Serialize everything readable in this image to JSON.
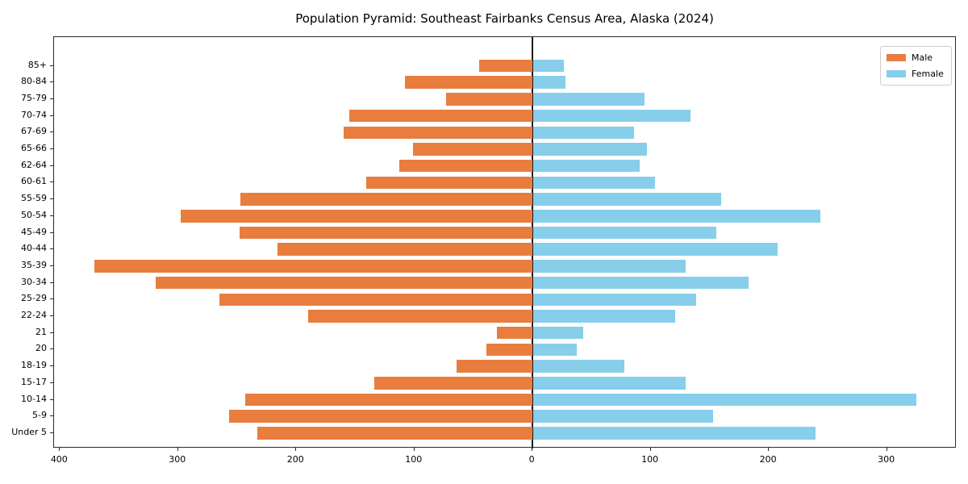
{
  "title": "Population Pyramid: Southeast Fairbanks Census Area, Alaska (2024)",
  "legend": {
    "male_label": "Male",
    "female_label": "Female"
  },
  "colors": {
    "male": "#e87d3e",
    "female": "#87ceeb",
    "zero_line": "#1a1a1a",
    "frame": "#2b2b2b"
  },
  "chart_data": {
    "type": "bar",
    "subtype": "population-pyramid-horizontal",
    "title": "Population Pyramid: Southeast Fairbanks Census Area, Alaska (2024)",
    "categories_top_to_bottom": [
      "85+",
      "80-84",
      "75-79",
      "70-74",
      "67-69",
      "65-66",
      "62-64",
      "60-61",
      "55-59",
      "50-54",
      "45-49",
      "40-44",
      "35-39",
      "30-34",
      "25-29",
      "22-24",
      "21",
      "20",
      "18-19",
      "15-17",
      "10-14",
      "5-9",
      "Under 5"
    ],
    "series": [
      {
        "name": "Male",
        "side": "left",
        "color": "#e87d3e",
        "values": [
          45,
          108,
          73,
          155,
          160,
          101,
          113,
          141,
          247,
          298,
          248,
          216,
          371,
          319,
          265,
          190,
          30,
          39,
          64,
          134,
          243,
          257,
          233
        ]
      },
      {
        "name": "Female",
        "side": "right",
        "color": "#87ceeb",
        "values": [
          26,
          27,
          94,
          133,
          85,
          96,
          90,
          103,
          159,
          243,
          155,
          207,
          129,
          182,
          138,
          120,
          42,
          37,
          77,
          129,
          324,
          152,
          239
        ]
      }
    ],
    "x_axis": {
      "tick_values": [
        -400,
        -300,
        -200,
        -100,
        0,
        100,
        200,
        300
      ],
      "tick_labels": [
        "400",
        "300",
        "200",
        "100",
        "0",
        "100",
        "200",
        "300"
      ],
      "xlim": [
        -405,
        359
      ]
    },
    "y_axis": {
      "label_order": "85+ at top, Under 5 at bottom"
    },
    "legend_position": "upper right",
    "legend_entries": [
      "Male",
      "Female"
    ],
    "grid": false,
    "zero_reference_line": true
  }
}
